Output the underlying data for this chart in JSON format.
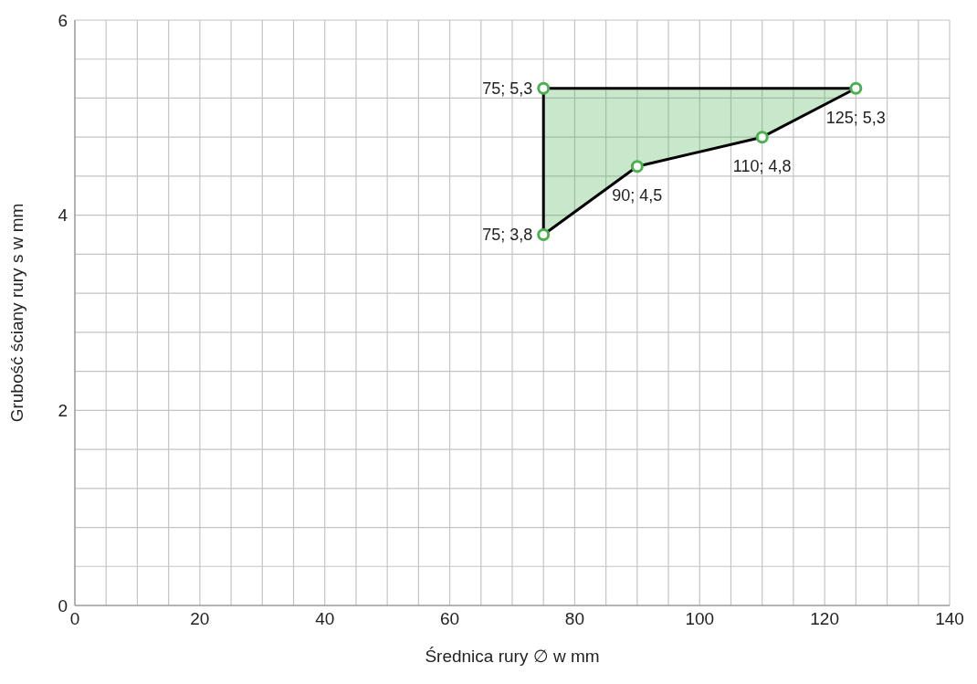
{
  "chart_data": {
    "type": "area",
    "xlabel": "Średnica rury ∅ w mm",
    "ylabel": "Grubość ściany rury s w mm",
    "xlim": [
      0,
      140
    ],
    "ylim": [
      0,
      6
    ],
    "xticks": [
      0,
      {
        "value": 5,
        "label": null
      },
      {
        "value": 10,
        "label": null
      },
      {
        "value": 15,
        "label": null
      },
      20,
      {
        "value": 25,
        "label": null
      },
      {
        "value": 30,
        "label": null
      },
      {
        "value": 35,
        "label": null
      },
      40,
      {
        "value": 45,
        "label": null
      },
      {
        "value": 50,
        "label": null
      },
      {
        "value": 55,
        "label": null
      },
      60,
      {
        "value": 65,
        "label": null
      },
      {
        "value": 70,
        "label": null
      },
      {
        "value": 75,
        "label": null
      },
      80,
      {
        "value": 85,
        "label": null
      },
      {
        "value": 90,
        "label": null
      },
      {
        "value": 95,
        "label": null
      },
      100,
      {
        "value": 105,
        "label": null
      },
      {
        "value": 110,
        "label": null
      },
      {
        "value": 115,
        "label": null
      },
      120,
      {
        "value": 125,
        "label": null
      },
      {
        "value": 130,
        "label": null
      },
      {
        "value": 135,
        "label": null
      },
      140
    ],
    "yticks": [
      0,
      {
        "value": 0.4,
        "label": null
      },
      {
        "value": 0.8,
        "label": null
      },
      {
        "value": 1.2,
        "label": null
      },
      {
        "value": 1.6,
        "label": null
      },
      2,
      {
        "value": 2.4,
        "label": null
      },
      {
        "value": 2.8,
        "label": null
      },
      {
        "value": 3.2,
        "label": null
      },
      {
        "value": 3.6,
        "label": null
      },
      4,
      {
        "value": 4.4,
        "label": null
      },
      {
        "value": 4.8,
        "label": null
      },
      {
        "value": 5.2,
        "label": null
      },
      {
        "value": 5.6,
        "label": null
      },
      6
    ],
    "grid": true,
    "marker": "circle",
    "series": [
      {
        "color": "#000000",
        "colors": [
          "#4caf50",
          "#4caf50",
          "#4caf50",
          "#4caf50",
          "#4caf50"
        ],
        "x": [
          75,
          125,
          110,
          90,
          75
        ],
        "values": [
          5.3,
          5.3,
          4.8,
          4.5,
          3.8
        ],
        "value_labels": [
          "75; 5,3",
          "125; 5,3",
          "110; 4,8",
          "90; 4,5",
          "75; 3,8"
        ]
      }
    ]
  }
}
